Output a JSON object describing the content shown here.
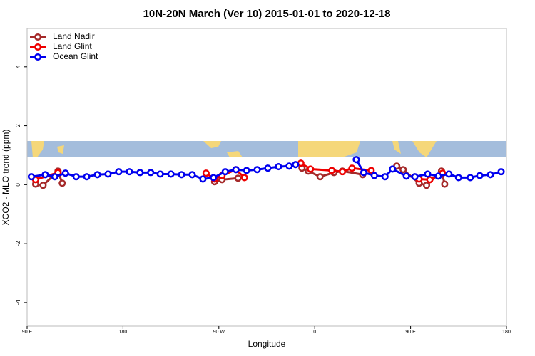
{
  "chart_data": {
    "type": "line",
    "title": "10N-20N March (Ver 10)   2015-01-01 to 2020-12-18",
    "x_label": "Longitude",
    "y_label": "XCO2 - MLO trend (ppm)",
    "xlim": [
      90,
      540
    ],
    "ylim": [
      -4.8,
      5.3
    ],
    "xticks": [
      {
        "value": 90,
        "label": "90 E"
      },
      {
        "value": 180,
        "label": "180"
      },
      {
        "value": 270,
        "label": "90 W"
      },
      {
        "value": 360,
        "label": "0"
      },
      {
        "value": 450,
        "label": "90 E"
      },
      {
        "value": 540,
        "label": "180"
      }
    ],
    "yticks": [
      4,
      2,
      0,
      -2,
      -4
    ],
    "legend": "top-left",
    "series": [
      {
        "name": "Land Nadir",
        "color": "#a52a2a",
        "x": [
          98,
          105,
          119,
          123,
          null,
          266,
          273,
          288,
          null,
          348,
          354,
          365,
          378,
          386,
          405,
          null,
          437,
          443,
          458,
          465,
          479,
          482
        ],
        "values": [
          0.02,
          -0.02,
          0.46,
          0.05,
          null,
          0.1,
          0.17,
          0.22,
          null,
          0.56,
          0.46,
          0.27,
          0.41,
          0.46,
          0.34,
          null,
          0.63,
          0.51,
          0.05,
          -0.02,
          0.46,
          0.02
        ]
      },
      {
        "name": "Land Glint",
        "color": "#ee0000",
        "x": [
          98,
          119,
          null,
          258,
          266,
          273,
          286,
          294,
          null,
          347,
          356,
          376,
          386,
          395,
          413,
          null,
          458,
          468,
          480
        ],
        "values": [
          0.17,
          0.41,
          null,
          0.39,
          0.19,
          0.31,
          0.51,
          0.24,
          null,
          0.73,
          0.53,
          0.48,
          0.44,
          0.56,
          0.48,
          null,
          0.19,
          0.17,
          0.39
        ]
      },
      {
        "name": "Ocean Glint",
        "color": "#0000ee",
        "x": [
          94,
          107,
          116,
          126,
          136,
          146,
          156,
          166,
          176,
          186,
          196,
          206,
          215,
          225,
          235,
          245,
          255,
          265,
          276,
          286,
          296,
          306,
          316,
          326,
          336,
          342,
          null,
          399,
          406,
          416,
          426,
          433,
          446,
          454,
          466,
          476,
          486,
          495,
          506,
          515,
          525,
          535
        ],
        "values": [
          0.27,
          0.34,
          0.27,
          0.39,
          0.27,
          0.27,
          0.34,
          0.36,
          0.44,
          0.44,
          0.41,
          0.41,
          0.36,
          0.36,
          0.34,
          0.34,
          0.19,
          0.24,
          0.44,
          0.51,
          0.48,
          0.51,
          0.56,
          0.61,
          0.63,
          0.68,
          null,
          0.85,
          0.41,
          0.31,
          0.27,
          0.53,
          0.29,
          0.27,
          0.36,
          0.29,
          0.36,
          0.24,
          0.24,
          0.31,
          0.34,
          0.44
        ]
      }
    ]
  }
}
